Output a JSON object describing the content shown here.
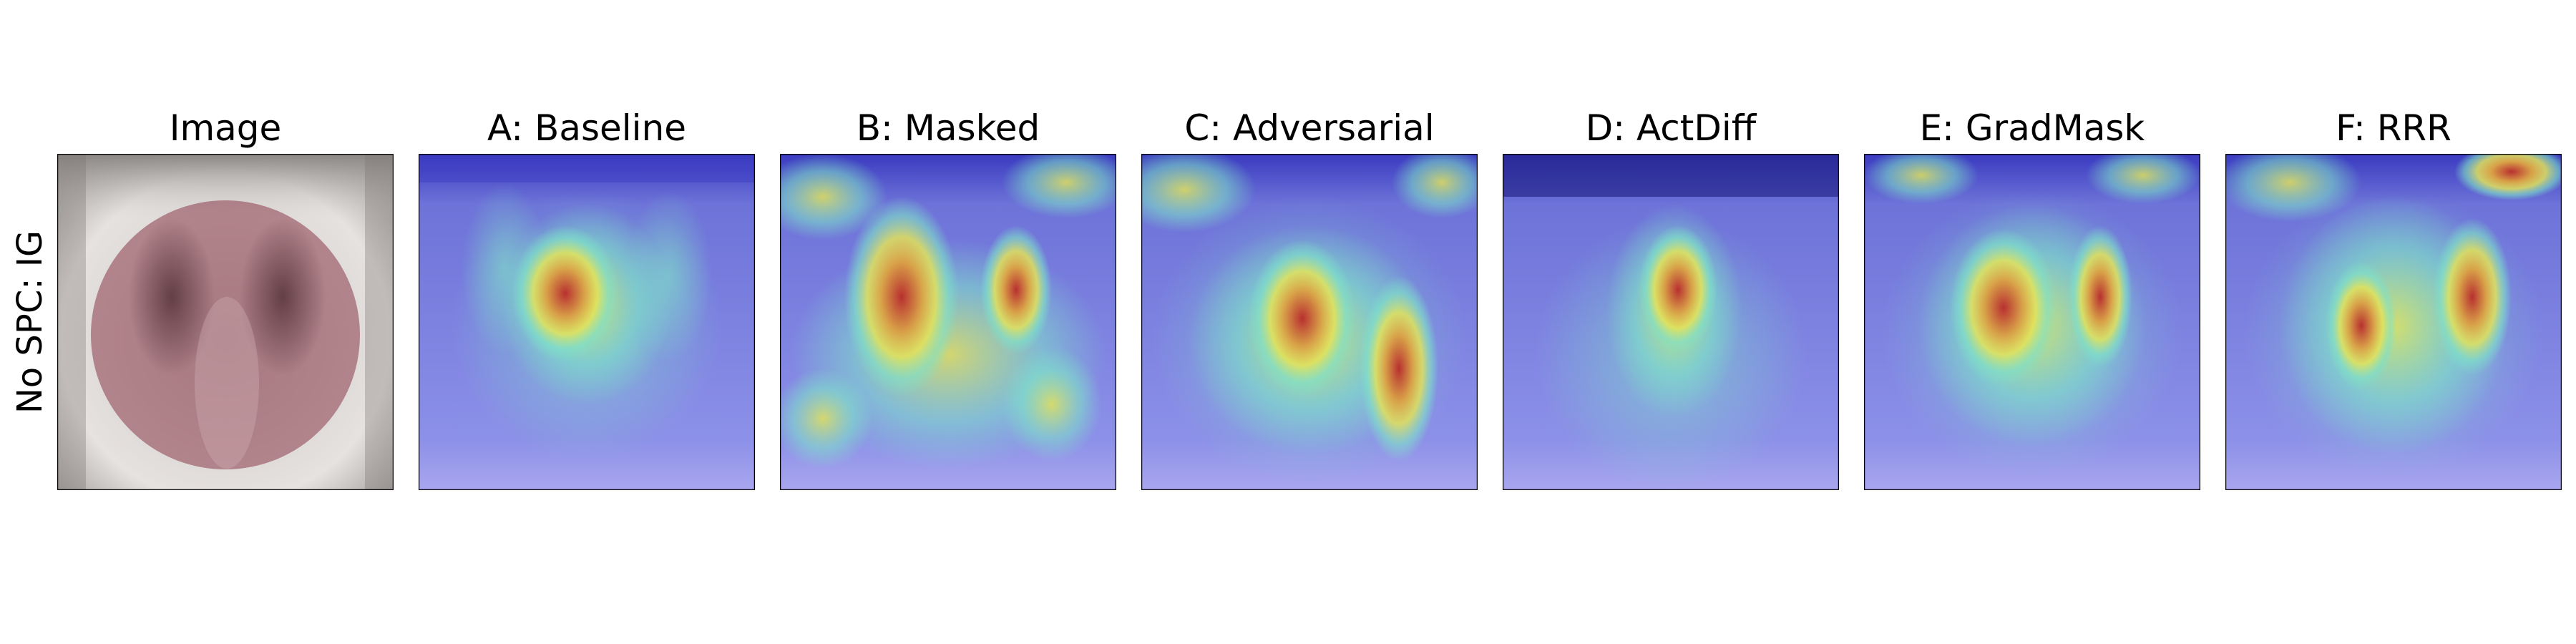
{
  "row_label": "No SPC: IG",
  "panels": [
    {
      "title": "Image"
    },
    {
      "title": "A: Baseline"
    },
    {
      "title": "B: Masked"
    },
    {
      "title": "C: Adversarial"
    },
    {
      "title": "D: ActDiff"
    },
    {
      "title": "E: GradMask"
    },
    {
      "title": "F: RRR"
    }
  ],
  "colors": {
    "mask_overlay": "#8a3a48",
    "colormap_low": "#2b2bd6",
    "colormap_mid": "#7fe3c8",
    "colormap_high": "#e3e35a",
    "colormap_peak": "#b83030"
  }
}
